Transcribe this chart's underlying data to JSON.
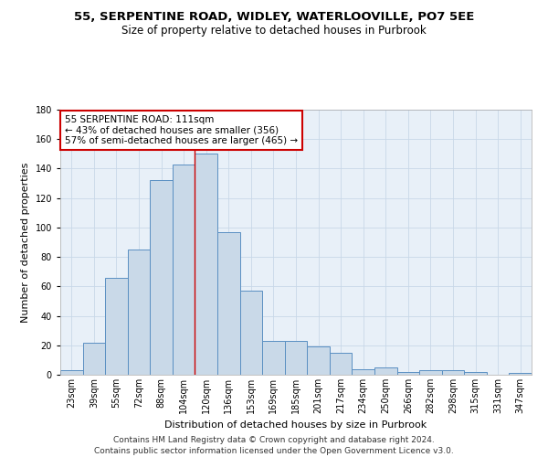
{
  "title1": "55, SERPENTINE ROAD, WIDLEY, WATERLOOVILLE, PO7 5EE",
  "title2": "Size of property relative to detached houses in Purbrook",
  "xlabel": "Distribution of detached houses by size in Purbrook",
  "ylabel": "Number of detached properties",
  "categories": [
    "23sqm",
    "39sqm",
    "55sqm",
    "72sqm",
    "88sqm",
    "104sqm",
    "120sqm",
    "136sqm",
    "153sqm",
    "169sqm",
    "185sqm",
    "201sqm",
    "217sqm",
    "234sqm",
    "250sqm",
    "266sqm",
    "282sqm",
    "298sqm",
    "315sqm",
    "331sqm",
    "347sqm"
  ],
  "values": [
    3,
    22,
    66,
    85,
    132,
    143,
    150,
    97,
    57,
    23,
    23,
    19,
    15,
    4,
    5,
    2,
    3,
    3,
    2,
    0,
    1
  ],
  "bar_color": "#c9d9e8",
  "bar_edge_color": "#5a8fc2",
  "vline_color": "#cc0000",
  "annotation_text": "55 SERPENTINE ROAD: 111sqm\n← 43% of detached houses are smaller (356)\n57% of semi-detached houses are larger (465) →",
  "annotation_box_color": "#ffffff",
  "annotation_box_edge": "#cc0000",
  "ylim": [
    0,
    180
  ],
  "yticks": [
    0,
    20,
    40,
    60,
    80,
    100,
    120,
    140,
    160,
    180
  ],
  "grid_color": "#c8d8e8",
  "bg_color": "#e8f0f8",
  "footer": "Contains HM Land Registry data © Crown copyright and database right 2024.\nContains public sector information licensed under the Open Government Licence v3.0.",
  "title1_fontsize": 9.5,
  "title2_fontsize": 8.5,
  "xlabel_fontsize": 8,
  "ylabel_fontsize": 8,
  "tick_fontsize": 7,
  "footer_fontsize": 6.5,
  "annotation_fontsize": 7.5
}
